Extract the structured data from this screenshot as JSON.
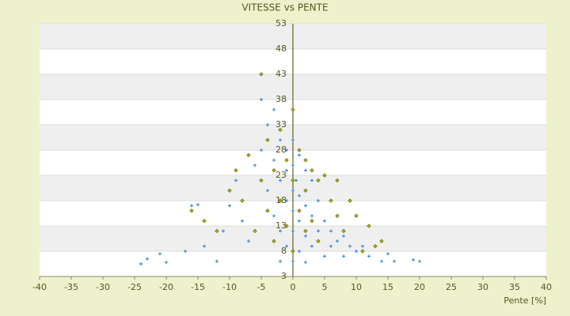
{
  "chart_data": {
    "type": "scatter",
    "title": "VITESSE vs PENTE",
    "x_label": "Pente [%]",
    "xlim": [
      -40,
      40
    ],
    "xticks": [
      -40,
      -35,
      -30,
      -25,
      -20,
      -15,
      -10,
      -5,
      0,
      5,
      10,
      15,
      20,
      25,
      30,
      35,
      40
    ],
    "ylim": [
      3,
      53
    ],
    "yticks": [
      3,
      8,
      13,
      18,
      23,
      28,
      33,
      38,
      43,
      48,
      53
    ],
    "grid": true,
    "series": [
      {
        "color": "#b8b800",
        "marker": "diamond",
        "x": [
          -16,
          -14,
          -12,
          -10,
          -9,
          -8,
          -7,
          -6,
          -5,
          -5,
          -4,
          -4,
          -3,
          -3,
          -2,
          -2,
          -1,
          -1,
          0,
          0,
          0,
          1,
          1,
          2,
          2,
          2,
          3,
          3,
          4,
          4,
          5,
          6,
          7,
          7,
          8,
          9,
          10,
          11,
          12,
          13,
          14
        ],
        "values": [
          16,
          14,
          12,
          20,
          24,
          18,
          27,
          12,
          43,
          22,
          30,
          16,
          24,
          10,
          32,
          18,
          26,
          13,
          36,
          22,
          8,
          28,
          16,
          26,
          20,
          12,
          24,
          14,
          22,
          10,
          23,
          18,
          15,
          22,
          12,
          18,
          15,
          8,
          13,
          9,
          10
        ]
      },
      {
        "color": "#3a8fd8",
        "marker": "plus",
        "x": [
          -24,
          -23,
          -21,
          -20,
          -17,
          -16,
          -15,
          -14,
          -12,
          -11,
          -10,
          -9,
          -8,
          -7,
          -6,
          -5,
          -5,
          -4,
          -4,
          -3,
          -3,
          -3,
          -2,
          -2,
          -2,
          -2,
          -1,
          -1,
          -1,
          -1,
          0,
          0,
          0,
          0,
          0,
          0,
          0.5,
          1,
          1,
          1,
          1,
          2,
          2,
          2,
          2,
          3,
          3,
          3,
          4,
          4,
          5,
          5,
          6,
          6,
          7,
          8,
          8,
          9,
          10,
          11,
          12,
          14,
          15,
          16,
          19,
          20
        ],
        "values": [
          5.5,
          6.5,
          7.5,
          5.8,
          8,
          17,
          17.2,
          9,
          6,
          12,
          17,
          22,
          14,
          10,
          25,
          38,
          28,
          33,
          20,
          36,
          26,
          15,
          30,
          22,
          12,
          6,
          28,
          24,
          18,
          9,
          30,
          25,
          20,
          16,
          12,
          6,
          22,
          27,
          19,
          14,
          8,
          24,
          17,
          11,
          5.8,
          22,
          15,
          9,
          18,
          12,
          14,
          7,
          12,
          9,
          10,
          11,
          7,
          9,
          8,
          9,
          7,
          6,
          7.5,
          6,
          6.3,
          6
        ]
      }
    ]
  }
}
